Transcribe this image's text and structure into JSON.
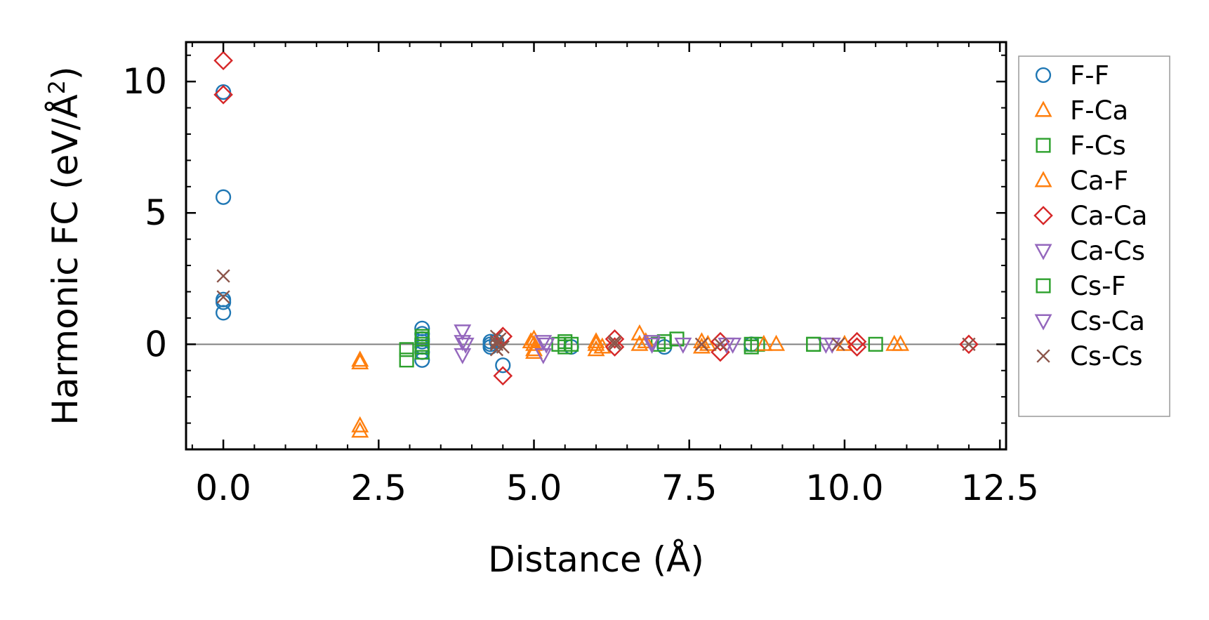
{
  "chart_data": {
    "type": "scatter",
    "title": "",
    "xlabel": "Distance (Å)",
    "ylabel_main": "Harmonic FC (eV/Å",
    "ylabel_sup": "2",
    "ylabel_close": ")",
    "xlim": [
      -0.6,
      12.6
    ],
    "ylim": [
      -4,
      11.5
    ],
    "xticks": [
      0.0,
      2.5,
      5.0,
      7.5,
      10.0,
      12.5
    ],
    "xtick_labels": [
      "0.0",
      "2.5",
      "5.0",
      "7.5",
      "10.0",
      "12.5"
    ],
    "yticks": [
      0,
      5,
      10
    ],
    "ytick_labels": [
      "0",
      "5",
      "10"
    ],
    "zero_line": true,
    "legend_position": "outside-right",
    "series": [
      {
        "name": "F-F",
        "marker": "circle",
        "color": "#1f77b4",
        "points": [
          [
            0,
            9.6
          ],
          [
            0,
            5.6
          ],
          [
            0,
            1.7
          ],
          [
            0,
            1.6
          ],
          [
            0,
            1.2
          ],
          [
            3.2,
            0.6
          ],
          [
            3.2,
            0.4
          ],
          [
            3.2,
            0.2
          ],
          [
            3.2,
            0.1
          ],
          [
            3.2,
            -0.1
          ],
          [
            3.2,
            -0.3
          ],
          [
            3.2,
            -0.6
          ],
          [
            4.3,
            0.1
          ],
          [
            4.3,
            0.0
          ],
          [
            4.3,
            -0.1
          ],
          [
            4.4,
            0.1
          ],
          [
            4.5,
            -0.8
          ],
          [
            5.6,
            -0.1
          ],
          [
            7.1,
            -0.1
          ],
          [
            8.5,
            0.0
          ]
        ]
      },
      {
        "name": "F-Ca",
        "marker": "triangle-up",
        "color": "#ff7f0e",
        "points": [
          [
            2.2,
            -0.6
          ],
          [
            2.2,
            -0.7
          ],
          [
            2.2,
            -3.1
          ],
          [
            2.2,
            -3.3
          ],
          [
            5.0,
            0.2
          ],
          [
            5.0,
            0.0
          ],
          [
            5.0,
            -0.3
          ],
          [
            6.0,
            0.1
          ],
          [
            6.0,
            -0.2
          ],
          [
            6.7,
            0.4
          ],
          [
            6.7,
            0.0
          ],
          [
            7.7,
            0.1
          ],
          [
            7.7,
            -0.1
          ],
          [
            8.9,
            0.0
          ],
          [
            10.8,
            0.0
          ],
          [
            10.9,
            0.0
          ]
        ]
      },
      {
        "name": "F-Cs",
        "marker": "square",
        "color": "#2ca02c",
        "points": [
          [
            2.95,
            -0.2
          ],
          [
            2.95,
            -0.6
          ],
          [
            3.2,
            0.3
          ],
          [
            3.2,
            0.2
          ],
          [
            3.2,
            0.0
          ],
          [
            3.2,
            -0.1
          ],
          [
            3.2,
            -0.3
          ],
          [
            5.4,
            0.0
          ],
          [
            5.5,
            0.1
          ],
          [
            5.6,
            0.0
          ],
          [
            7.0,
            0.0
          ],
          [
            7.3,
            0.2
          ],
          [
            8.5,
            0.0
          ],
          [
            8.6,
            0.0
          ],
          [
            9.5,
            0.0
          ],
          [
            10.5,
            0.0
          ]
        ]
      },
      {
        "name": "Ca-F",
        "marker": "triangle-up",
        "color": "#ff7f0e",
        "points": [
          [
            4.95,
            0.1
          ],
          [
            5.0,
            -0.2
          ],
          [
            6.0,
            0.0
          ],
          [
            6.1,
            -0.1
          ],
          [
            6.8,
            0.1
          ],
          [
            7.8,
            0.0
          ],
          [
            8.7,
            0.0
          ],
          [
            10.0,
            0.0
          ]
        ]
      },
      {
        "name": "Ca-Ca",
        "marker": "diamond",
        "color": "#d62728",
        "points": [
          [
            0,
            10.8
          ],
          [
            0,
            9.5
          ],
          [
            4.5,
            0.3
          ],
          [
            4.5,
            -1.2
          ],
          [
            6.3,
            0.2
          ],
          [
            6.3,
            -0.1
          ],
          [
            8.0,
            0.1
          ],
          [
            8.0,
            -0.3
          ],
          [
            10.2,
            0.1
          ],
          [
            10.2,
            -0.1
          ],
          [
            12.0,
            0.0
          ]
        ]
      },
      {
        "name": "Ca-Cs",
        "marker": "triangle-down",
        "color": "#9467bd",
        "points": [
          [
            3.85,
            0.5
          ],
          [
            3.85,
            0.1
          ],
          [
            3.85,
            -0.4
          ],
          [
            5.15,
            0.1
          ],
          [
            5.15,
            -0.4
          ],
          [
            6.9,
            0.0
          ],
          [
            7.4,
            0.0
          ],
          [
            8.2,
            0.0
          ],
          [
            9.7,
            0.0
          ]
        ]
      },
      {
        "name": "Cs-F",
        "marker": "square",
        "color": "#2ca02c",
        "points": [
          [
            3.2,
            0.2
          ],
          [
            3.2,
            -0.1
          ],
          [
            5.5,
            -0.1
          ],
          [
            7.1,
            0.1
          ],
          [
            8.5,
            -0.1
          ],
          [
            9.5,
            0.0
          ]
        ]
      },
      {
        "name": "Cs-Ca",
        "marker": "triangle-down",
        "color": "#9467bd",
        "points": [
          [
            3.9,
            0.0
          ],
          [
            5.2,
            0.0
          ],
          [
            6.9,
            0.1
          ],
          [
            8.1,
            0.0
          ],
          [
            9.8,
            0.0
          ]
        ]
      },
      {
        "name": "Cs-Cs",
        "marker": "x",
        "color": "#8c564b",
        "points": [
          [
            0,
            2.6
          ],
          [
            0,
            1.8
          ],
          [
            4.4,
            0.3
          ],
          [
            4.4,
            0.1
          ],
          [
            4.4,
            0.0
          ],
          [
            4.4,
            -0.2
          ],
          [
            4.45,
            0.2
          ],
          [
            4.5,
            -0.1
          ],
          [
            6.3,
            0.1
          ],
          [
            6.3,
            0.0
          ],
          [
            7.7,
            0.0
          ],
          [
            8.0,
            0.0
          ],
          [
            9.9,
            0.0
          ],
          [
            12.0,
            0.0
          ]
        ]
      }
    ]
  }
}
